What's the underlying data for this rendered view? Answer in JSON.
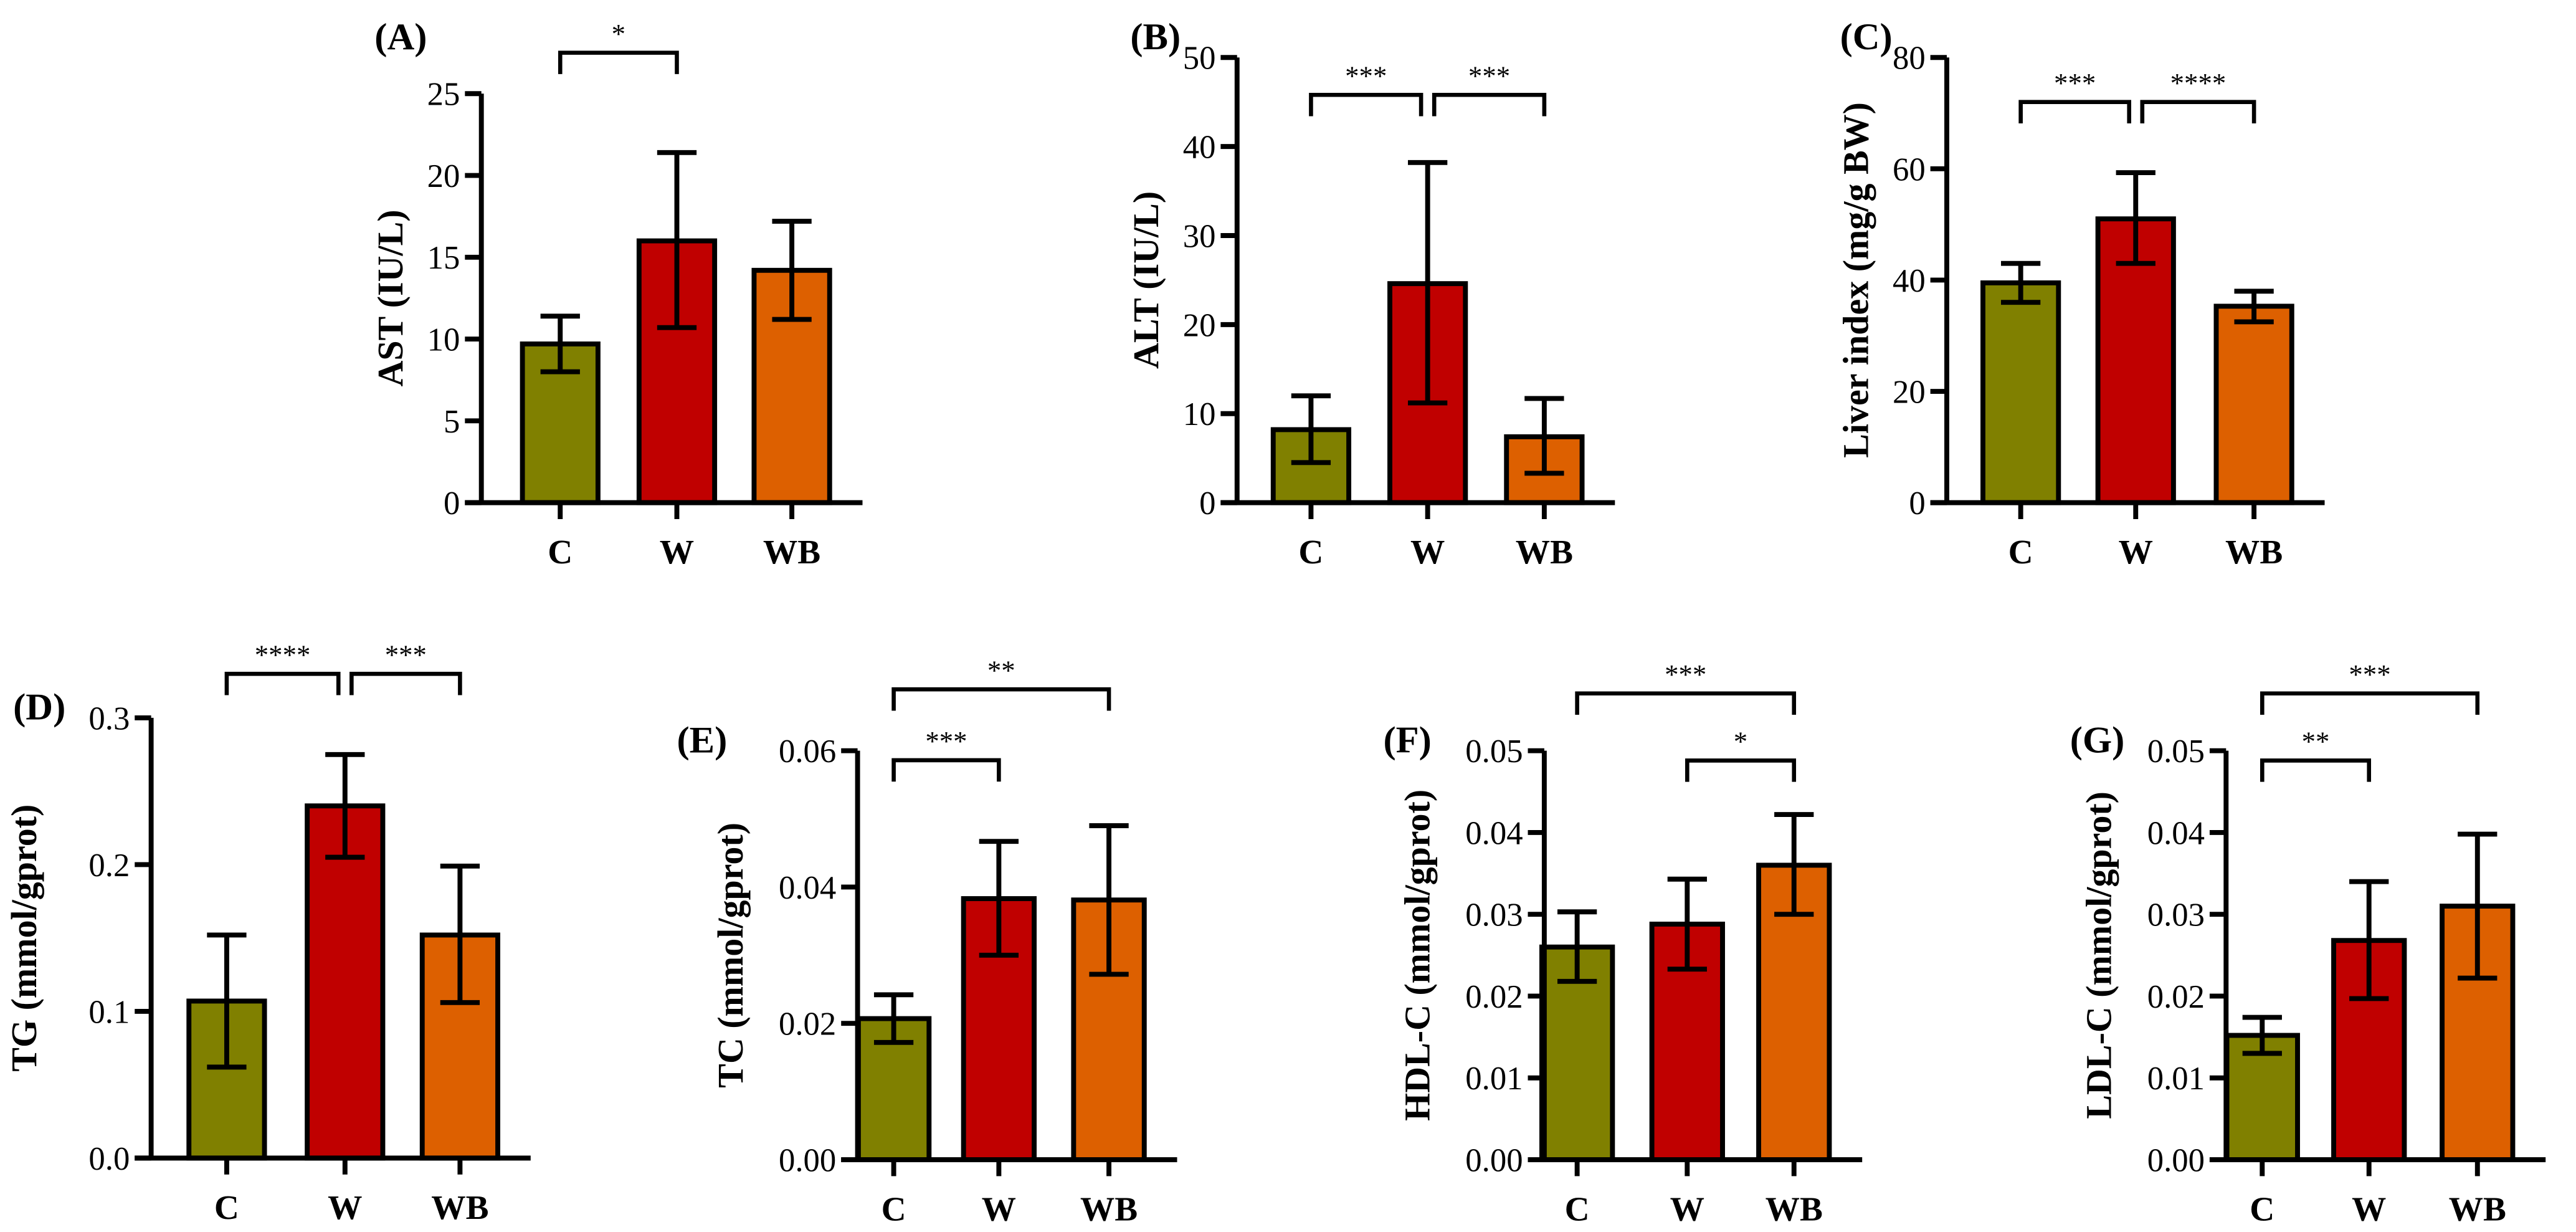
{
  "colors": {
    "C": "#808000",
    "W": "#c00000",
    "WB": "#dd6000"
  },
  "chart_data": [
    {
      "type": "bar",
      "panel": "(A)",
      "ylabel": "AST (IU/L)",
      "categories": [
        "C",
        "W",
        "WB"
      ],
      "values": [
        9.7,
        16.0,
        14.2
      ],
      "err_low": [
        8.0,
        10.7,
        11.2
      ],
      "err_high": [
        11.4,
        21.4,
        17.2
      ],
      "ylim": [
        0,
        25
      ],
      "yticks": [
        "0",
        "5",
        "10",
        "15",
        "20",
        "25"
      ],
      "ytick_values": [
        0,
        5,
        10,
        15,
        20,
        25
      ],
      "significance": [
        {
          "from": "C",
          "to": "W",
          "label": "*",
          "y": 27.5
        }
      ]
    },
    {
      "type": "bar",
      "panel": "(B)",
      "ylabel": "ALT (IU/L)",
      "categories": [
        "C",
        "W",
        "WB"
      ],
      "values": [
        8.2,
        24.6,
        7.4
      ],
      "err_low": [
        4.5,
        11.2,
        3.3
      ],
      "err_high": [
        12.0,
        38.2,
        11.7
      ],
      "ylim": [
        0,
        50
      ],
      "yticks": [
        "0",
        "10",
        "20",
        "30",
        "40",
        "50"
      ],
      "ytick_values": [
        0,
        10,
        20,
        30,
        40,
        50
      ],
      "significance": [
        {
          "from": "C",
          "to": "W",
          "label": "***",
          "y": 45.8
        },
        {
          "from": "W",
          "to": "WB",
          "label": "***",
          "y": 45.8
        }
      ]
    },
    {
      "type": "bar",
      "panel": "(C)",
      "ylabel": "Liver index (mg/g BW)",
      "categories": [
        "C",
        "W",
        "WB"
      ],
      "values": [
        39.5,
        51.0,
        35.3
      ],
      "err_low": [
        36.0,
        43.0,
        32.5
      ],
      "err_high": [
        43.0,
        59.3,
        38.0
      ],
      "ylim": [
        0,
        80
      ],
      "yticks": [
        "0",
        "20",
        "40",
        "60",
        "80"
      ],
      "ytick_values": [
        0,
        20,
        40,
        60,
        80
      ],
      "significance": [
        {
          "from": "C",
          "to": "W",
          "label": "***",
          "y": 72
        },
        {
          "from": "W",
          "to": "WB",
          "label": "****",
          "y": 72
        }
      ]
    },
    {
      "type": "bar",
      "panel": "(D)",
      "ylabel": "TG (mmol/gprot)",
      "categories": [
        "C",
        "W",
        "WB"
      ],
      "values": [
        0.107,
        0.24,
        0.152
      ],
      "err_low": [
        0.062,
        0.205,
        0.106
      ],
      "err_high": [
        0.152,
        0.275,
        0.199
      ],
      "ylim": [
        0,
        0.3
      ],
      "yticks": [
        "0.0",
        "0.1",
        "0.2",
        "0.3"
      ],
      "ytick_values": [
        0,
        0.1,
        0.2,
        0.3
      ],
      "significance": [
        {
          "from": "C",
          "to": "W",
          "label": "****",
          "y": 0.33
        },
        {
          "from": "W",
          "to": "WB",
          "label": "***",
          "y": 0.33
        }
      ]
    },
    {
      "type": "bar",
      "panel": "(E)",
      "ylabel": "TC (mmol/gprot)",
      "categories": [
        "C",
        "W",
        "WB"
      ],
      "values": [
        0.0207,
        0.0383,
        0.0381
      ],
      "err_low": [
        0.0172,
        0.03,
        0.0272
      ],
      "err_high": [
        0.0242,
        0.0467,
        0.049
      ],
      "ylim": [
        0,
        0.06
      ],
      "yticks": [
        "0.00",
        "0.02",
        "0.04",
        "0.06"
      ],
      "ytick_values": [
        0,
        0.02,
        0.04,
        0.06
      ],
      "significance": [
        {
          "from": "C",
          "to": "W",
          "label": "***",
          "y": 0.0586
        },
        {
          "from": "C",
          "to": "WB",
          "label": "**",
          "y": 0.069
        }
      ]
    },
    {
      "type": "bar",
      "panel": "(F)",
      "ylabel": "HDL-C (mmol/gprot)",
      "categories": [
        "C",
        "W",
        "WB"
      ],
      "values": [
        0.026,
        0.0288,
        0.036
      ],
      "err_low": [
        0.0218,
        0.0233,
        0.03
      ],
      "err_high": [
        0.0303,
        0.0343,
        0.0422
      ],
      "ylim": [
        0,
        0.05
      ],
      "yticks": [
        "0.00",
        "0.01",
        "0.02",
        "0.03",
        "0.04",
        "0.05"
      ],
      "ytick_values": [
        0,
        0.01,
        0.02,
        0.03,
        0.04,
        0.05
      ],
      "significance": [
        {
          "from": "W",
          "to": "WB",
          "label": "*",
          "y": 0.0488
        },
        {
          "from": "C",
          "to": "WB",
          "label": "***",
          "y": 0.057
        }
      ]
    },
    {
      "type": "bar",
      "panel": "(G)",
      "ylabel": "LDL-C (mmol/gprot)",
      "categories": [
        "C",
        "W",
        "WB"
      ],
      "values": [
        0.0152,
        0.0268,
        0.031
      ],
      "err_low": [
        0.013,
        0.0197,
        0.0222
      ],
      "err_high": [
        0.0174,
        0.034,
        0.0398
      ],
      "ylim": [
        0,
        0.05
      ],
      "yticks": [
        "0.00",
        "0.01",
        "0.02",
        "0.03",
        "0.04",
        "0.05"
      ],
      "ytick_values": [
        0,
        0.01,
        0.02,
        0.03,
        0.04,
        0.05
      ],
      "significance": [
        {
          "from": "C",
          "to": "W",
          "label": "**",
          "y": 0.0488
        },
        {
          "from": "C",
          "to": "WB",
          "label": "***",
          "y": 0.057
        }
      ]
    }
  ]
}
